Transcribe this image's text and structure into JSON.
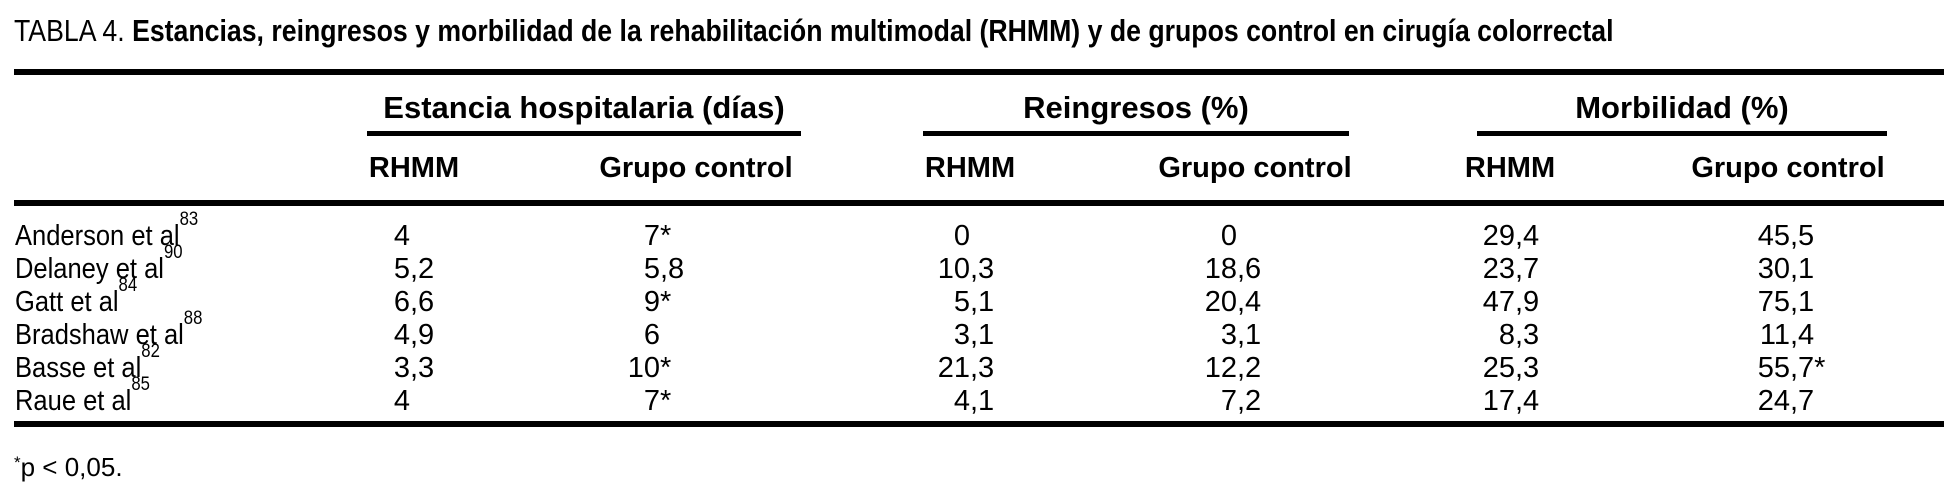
{
  "title": {
    "prefix": "TABLA 4.",
    "caption": "Estancias, reingresos y morbilidad de la rehabilitación multimodal (RHMM) y de grupos control en cirugía colorrectal"
  },
  "columns": {
    "groups": [
      {
        "label": "Estancia hospitalaria (días)",
        "sub": [
          "RHMM",
          "Grupo control"
        ]
      },
      {
        "label": "Reingresos (%)",
        "sub": [
          "RHMM",
          "Grupo control"
        ]
      },
      {
        "label": "Morbilidad (%)",
        "sub": [
          "RHMM",
          "Grupo control"
        ]
      }
    ]
  },
  "table": {
    "rows": [
      {
        "study": "Anderson et al",
        "ref": "83",
        "values": [
          "4",
          "7*",
          "0",
          "0",
          "29,4",
          "45,5"
        ]
      },
      {
        "study": "Delaney et al",
        "ref": "90",
        "values": [
          "5,2",
          "5,8",
          "10,3",
          "18,6",
          "23,7",
          "30,1"
        ]
      },
      {
        "study": "Gatt et al",
        "ref": "84",
        "values": [
          "6,6",
          "9*",
          "5,1",
          "20,4",
          "47,9",
          "75,1"
        ]
      },
      {
        "study": "Bradshaw et al",
        "ref": "88",
        "values": [
          "4,9",
          "6",
          "3,1",
          "3,1",
          "8,3",
          "11,4"
        ]
      },
      {
        "study": "Basse et al",
        "ref": "82",
        "values": [
          "3,3",
          "10*",
          "21,3",
          "12,2",
          "25,3",
          "55,7*"
        ]
      },
      {
        "study": "Raue et al",
        "ref": "85",
        "values": [
          "4",
          "7*",
          "4,1",
          "7,2",
          "17,4",
          "24,7"
        ]
      }
    ]
  },
  "footnote": {
    "marker": "*",
    "text": "p < 0,05."
  },
  "colors": {
    "text": "#000000",
    "background": "#ffffff",
    "rule": "#000000"
  }
}
